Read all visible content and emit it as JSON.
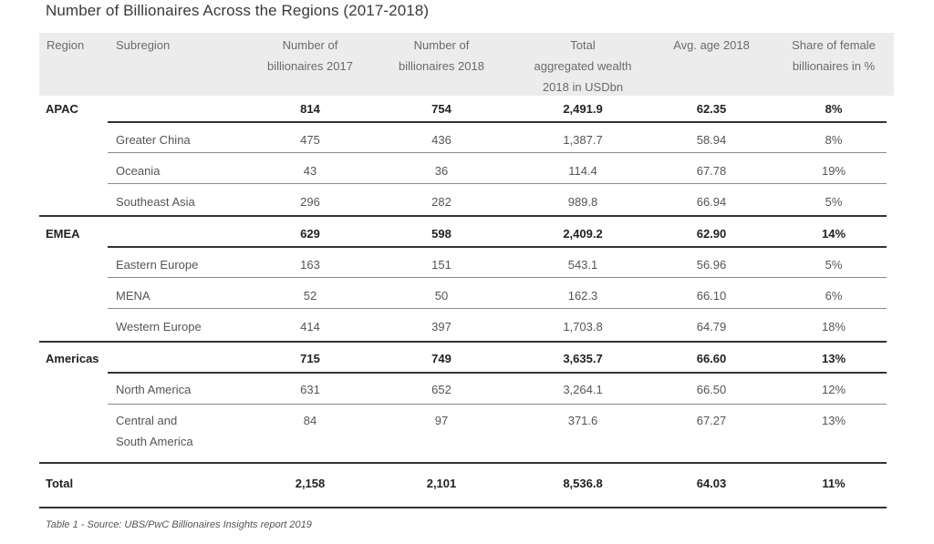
{
  "title": "Number of Billionaires Across the Regions (2017-2018)",
  "headers": {
    "region": "Region",
    "subregion": "Subregion",
    "b2017": [
      "Number of",
      "billionaires 2017"
    ],
    "b2018": [
      "Number of",
      "billionaires 2018"
    ],
    "wealth": [
      "Total",
      "aggregated wealth",
      "2018 in USDbn"
    ],
    "age": "Avg. age 2018",
    "female": [
      "Share of female",
      "billionaires in %"
    ]
  },
  "rows": [
    {
      "region": "APAC",
      "subregion": "",
      "b2017": "814",
      "b2018": "754",
      "wealth": "2,491.9",
      "age": "62.35",
      "female": "8%"
    },
    {
      "region": "",
      "subregion": "Greater China",
      "b2017": "475",
      "b2018": "436",
      "wealth": "1,387.7",
      "age": "58.94",
      "female": "8%"
    },
    {
      "region": "",
      "subregion": "Oceania",
      "b2017": "43",
      "b2018": "36",
      "wealth": "114.4",
      "age": "67.78",
      "female": "19%"
    },
    {
      "region": "",
      "subregion": "Southeast Asia",
      "b2017": "296",
      "b2018": "282",
      "wealth": "989.8",
      "age": "66.94",
      "female": "5%"
    },
    {
      "region": "EMEA",
      "subregion": "",
      "b2017": "629",
      "b2018": "598",
      "wealth": "2,409.2",
      "age": "62.90",
      "female": "14%"
    },
    {
      "region": "",
      "subregion": "Eastern Europe",
      "b2017": "163",
      "b2018": "151",
      "wealth": "543.1",
      "age": "56.96",
      "female": "5%"
    },
    {
      "region": "",
      "subregion": "MENA",
      "b2017": "52",
      "b2018": "50",
      "wealth": "162.3",
      "age": "66.10",
      "female": "6%"
    },
    {
      "region": "",
      "subregion": "Western Europe",
      "b2017": "414",
      "b2018": "397",
      "wealth": "1,703.8",
      "age": "64.79",
      "female": "18%"
    },
    {
      "region": "Americas",
      "subregion": "",
      "b2017": "715",
      "b2018": "749",
      "wealth": "3,635.7",
      "age": "66.60",
      "female": "13%"
    },
    {
      "region": "",
      "subregion": "North America",
      "b2017": "631",
      "b2018": "652",
      "wealth": "3,264.1",
      "age": "66.50",
      "female": "12%"
    },
    {
      "region": "",
      "subregion": [
        "Central and",
        "South America"
      ],
      "b2017": "84",
      "b2018": "97",
      "wealth": "371.6",
      "age": "67.27",
      "female": "13%"
    },
    {
      "region": "Total",
      "subregion": "",
      "b2017": "2,158",
      "b2018": "2,101",
      "wealth": "8,536.8",
      "age": "64.03",
      "female": "11%"
    }
  ],
  "source": "Table 1 - Source: UBS/PwC Billionaires Insights report 2019"
}
